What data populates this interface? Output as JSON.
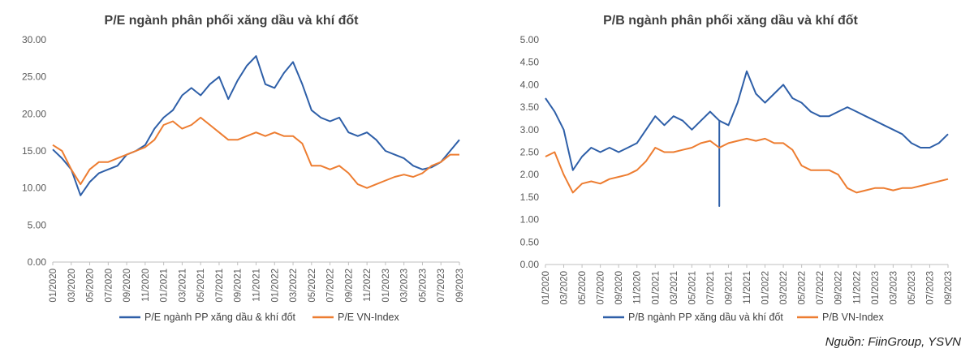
{
  "source_note": "Nguồn: FiinGroup, YSVN",
  "chart_data": [
    {
      "type": "line",
      "title": "P/E ngành phân phối xăng dầu và khí đốt",
      "ylim": [
        0,
        30
      ],
      "yticks": [
        "0.00",
        "5.00",
        "10.00",
        "15.00",
        "20.00",
        "25.00",
        "30.00"
      ],
      "xticks": [
        "01/2020",
        "03/2020",
        "05/2020",
        "07/2020",
        "09/2020",
        "11/2020",
        "01/2021",
        "03/2021",
        "05/2021",
        "07/2021",
        "09/2021",
        "11/2021",
        "01/2022",
        "03/2022",
        "05/2022",
        "07/2022",
        "09/2022",
        "11/2022",
        "01/2023",
        "03/2023",
        "05/2023",
        "07/2023",
        "09/2023"
      ],
      "grid": false,
      "legend": "bottom",
      "series": [
        {
          "name": "P/E ngành PP xăng dầu & khí đốt",
          "color": "#2e5fa8",
          "points": [
            [
              "01/2020",
              15.2
            ],
            [
              "02/2020",
              14.0
            ],
            [
              "03/2020",
              12.5
            ],
            [
              "04/2020",
              9.0
            ],
            [
              "05/2020",
              10.8
            ],
            [
              "06/2020",
              12.0
            ],
            [
              "07/2020",
              12.5
            ],
            [
              "08/2020",
              13.0
            ],
            [
              "09/2020",
              14.5
            ],
            [
              "10/2020",
              15.0
            ],
            [
              "11/2020",
              15.8
            ],
            [
              "12/2020",
              18.0
            ],
            [
              "01/2021",
              19.5
            ],
            [
              "02/2021",
              20.5
            ],
            [
              "03/2021",
              22.5
            ],
            [
              "04/2021",
              23.5
            ],
            [
              "05/2021",
              22.5
            ],
            [
              "06/2021",
              24.0
            ],
            [
              "07/2021",
              25.0
            ],
            [
              "08/2021",
              22.0
            ],
            [
              "09/2021",
              24.5
            ],
            [
              "10/2021",
              26.5
            ],
            [
              "11/2021",
              27.8
            ],
            [
              "12/2021",
              24.0
            ],
            [
              "01/2022",
              23.5
            ],
            [
              "02/2022",
              25.5
            ],
            [
              "03/2022",
              27.0
            ],
            [
              "04/2022",
              24.0
            ],
            [
              "05/2022",
              20.5
            ],
            [
              "06/2022",
              19.5
            ],
            [
              "07/2022",
              19.0
            ],
            [
              "08/2022",
              19.5
            ],
            [
              "09/2022",
              17.5
            ],
            [
              "10/2022",
              17.0
            ],
            [
              "11/2022",
              17.5
            ],
            [
              "12/2022",
              16.5
            ],
            [
              "01/2023",
              15.0
            ],
            [
              "02/2023",
              14.5
            ],
            [
              "03/2023",
              14.0
            ],
            [
              "04/2023",
              13.0
            ],
            [
              "05/2023",
              12.5
            ],
            [
              "06/2023",
              12.8
            ],
            [
              "07/2023",
              13.5
            ],
            [
              "08/2023",
              15.0
            ],
            [
              "09/2023",
              16.5
            ]
          ]
        },
        {
          "name": "P/E VN-Index",
          "color": "#ed7d31",
          "points": [
            [
              "01/2020",
              15.8
            ],
            [
              "02/2020",
              15.0
            ],
            [
              "03/2020",
              12.5
            ],
            [
              "04/2020",
              10.5
            ],
            [
              "05/2020",
              12.5
            ],
            [
              "06/2020",
              13.5
            ],
            [
              "07/2020",
              13.5
            ],
            [
              "08/2020",
              14.0
            ],
            [
              "09/2020",
              14.5
            ],
            [
              "10/2020",
              15.0
            ],
            [
              "11/2020",
              15.5
            ],
            [
              "12/2020",
              16.5
            ],
            [
              "01/2021",
              18.5
            ],
            [
              "02/2021",
              19.0
            ],
            [
              "03/2021",
              18.0
            ],
            [
              "04/2021",
              18.5
            ],
            [
              "05/2021",
              19.5
            ],
            [
              "06/2021",
              18.5
            ],
            [
              "07/2021",
              17.5
            ],
            [
              "08/2021",
              16.5
            ],
            [
              "09/2021",
              16.5
            ],
            [
              "10/2021",
              17.0
            ],
            [
              "11/2021",
              17.5
            ],
            [
              "12/2021",
              17.0
            ],
            [
              "01/2022",
              17.5
            ],
            [
              "02/2022",
              17.0
            ],
            [
              "03/2022",
              17.0
            ],
            [
              "04/2022",
              16.0
            ],
            [
              "05/2022",
              13.0
            ],
            [
              "06/2022",
              13.0
            ],
            [
              "07/2022",
              12.5
            ],
            [
              "08/2022",
              13.0
            ],
            [
              "09/2022",
              12.0
            ],
            [
              "10/2022",
              10.5
            ],
            [
              "11/2022",
              10.0
            ],
            [
              "12/2022",
              10.5
            ],
            [
              "01/2023",
              11.0
            ],
            [
              "02/2023",
              11.5
            ],
            [
              "03/2023",
              11.8
            ],
            [
              "04/2023",
              11.5
            ],
            [
              "05/2023",
              12.0
            ],
            [
              "06/2023",
              13.0
            ],
            [
              "07/2023",
              13.5
            ],
            [
              "08/2023",
              14.5
            ],
            [
              "09/2023",
              14.5
            ]
          ]
        }
      ]
    },
    {
      "type": "line",
      "title": "P/B ngành phân phối xăng dầu và khí đốt",
      "ylim": [
        0,
        5
      ],
      "yticks": [
        "0.00",
        "0.50",
        "1.00",
        "1.50",
        "2.00",
        "2.50",
        "3.00",
        "3.50",
        "4.00",
        "4.50",
        "5.00"
      ],
      "xticks": [
        "01/2020",
        "03/2020",
        "05/2020",
        "07/2020",
        "09/2020",
        "11/2020",
        "01/2021",
        "03/2021",
        "05/2021",
        "07/2021",
        "09/2021",
        "11/2021",
        "01/2022",
        "03/2022",
        "05/2022",
        "07/2022",
        "09/2022",
        "11/2022",
        "01/2023",
        "03/2023",
        "05/2023",
        "07/2023",
        "09/2023"
      ],
      "grid": false,
      "legend": "bottom",
      "series": [
        {
          "name": "P/B ngành PP xăng dầu và khí đốt",
          "color": "#2e5fa8",
          "points": [
            [
              "01/2020",
              3.7
            ],
            [
              "02/2020",
              3.4
            ],
            [
              "03/2020",
              3.0
            ],
            [
              "04/2020",
              2.1
            ],
            [
              "05/2020",
              2.4
            ],
            [
              "06/2020",
              2.6
            ],
            [
              "07/2020",
              2.5
            ],
            [
              "08/2020",
              2.6
            ],
            [
              "09/2020",
              2.5
            ],
            [
              "10/2020",
              2.6
            ],
            [
              "11/2020",
              2.7
            ],
            [
              "12/2020",
              3.0
            ],
            [
              "01/2021",
              3.3
            ],
            [
              "02/2021",
              3.1
            ],
            [
              "03/2021",
              3.3
            ],
            [
              "04/2021",
              3.2
            ],
            [
              "05/2021",
              3.0
            ],
            [
              "06/2021",
              3.2
            ],
            [
              "07/2021",
              3.4
            ],
            [
              "08/2021",
              3.2
            ],
            [
              "08/2021",
              1.3
            ],
            [
              "08/2021",
              3.2
            ],
            [
              "09/2021",
              3.1
            ],
            [
              "10/2021",
              3.6
            ],
            [
              "11/2021",
              4.3
            ],
            [
              "12/2021",
              3.8
            ],
            [
              "01/2022",
              3.6
            ],
            [
              "02/2022",
              3.8
            ],
            [
              "03/2022",
              4.0
            ],
            [
              "04/2022",
              3.7
            ],
            [
              "05/2022",
              3.6
            ],
            [
              "06/2022",
              3.4
            ],
            [
              "07/2022",
              3.3
            ],
            [
              "08/2022",
              3.3
            ],
            [
              "09/2022",
              3.4
            ],
            [
              "10/2022",
              3.5
            ],
            [
              "11/2022",
              3.4
            ],
            [
              "12/2022",
              3.3
            ],
            [
              "01/2023",
              3.2
            ],
            [
              "02/2023",
              3.1
            ],
            [
              "03/2023",
              3.0
            ],
            [
              "04/2023",
              2.9
            ],
            [
              "05/2023",
              2.7
            ],
            [
              "06/2023",
              2.6
            ],
            [
              "07/2023",
              2.6
            ],
            [
              "08/2023",
              2.7
            ],
            [
              "09/2023",
              2.9
            ]
          ]
        },
        {
          "name": "P/B VN-Index",
          "color": "#ed7d31",
          "points": [
            [
              "01/2020",
              2.4
            ],
            [
              "02/2020",
              2.5
            ],
            [
              "03/2020",
              2.0
            ],
            [
              "04/2020",
              1.6
            ],
            [
              "05/2020",
              1.8
            ],
            [
              "06/2020",
              1.85
            ],
            [
              "07/2020",
              1.8
            ],
            [
              "08/2020",
              1.9
            ],
            [
              "09/2020",
              1.95
            ],
            [
              "10/2020",
              2.0
            ],
            [
              "11/2020",
              2.1
            ],
            [
              "12/2020",
              2.3
            ],
            [
              "01/2021",
              2.6
            ],
            [
              "02/2021",
              2.5
            ],
            [
              "03/2021",
              2.5
            ],
            [
              "04/2021",
              2.55
            ],
            [
              "05/2021",
              2.6
            ],
            [
              "06/2021",
              2.7
            ],
            [
              "07/2021",
              2.75
            ],
            [
              "08/2021",
              2.6
            ],
            [
              "09/2021",
              2.7
            ],
            [
              "10/2021",
              2.75
            ],
            [
              "11/2021",
              2.8
            ],
            [
              "12/2021",
              2.75
            ],
            [
              "01/2022",
              2.8
            ],
            [
              "02/2022",
              2.7
            ],
            [
              "03/2022",
              2.7
            ],
            [
              "04/2022",
              2.55
            ],
            [
              "05/2022",
              2.2
            ],
            [
              "06/2022",
              2.1
            ],
            [
              "07/2022",
              2.1
            ],
            [
              "08/2022",
              2.1
            ],
            [
              "09/2022",
              2.0
            ],
            [
              "10/2022",
              1.7
            ],
            [
              "11/2022",
              1.6
            ],
            [
              "12/2022",
              1.65
            ],
            [
              "01/2023",
              1.7
            ],
            [
              "02/2023",
              1.7
            ],
            [
              "03/2023",
              1.65
            ],
            [
              "04/2023",
              1.7
            ],
            [
              "05/2023",
              1.7
            ],
            [
              "06/2023",
              1.75
            ],
            [
              "07/2023",
              1.8
            ],
            [
              "08/2023",
              1.85
            ],
            [
              "09/2023",
              1.9
            ]
          ]
        }
      ]
    }
  ]
}
